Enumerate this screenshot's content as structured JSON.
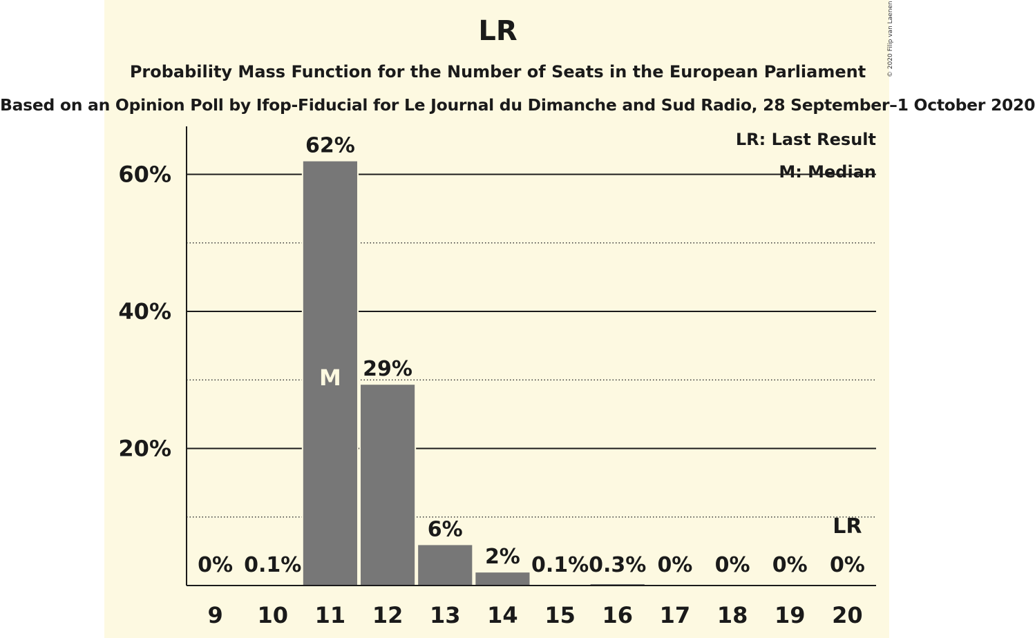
{
  "chart_data": {
    "type": "bar",
    "title": "LR",
    "subtitle": "Probability Mass Function for the Number of Seats in the European Parliament",
    "subtitle2": "Based on an Opinion Poll by Ifop-Fiducial for Le Journal du Dimanche and Sud Radio, 28 September–1 October 2020",
    "copyright": "© 2020 Filip van Laenen",
    "categories": [
      "9",
      "10",
      "11",
      "12",
      "13",
      "14",
      "15",
      "16",
      "17",
      "18",
      "19",
      "20"
    ],
    "values": [
      0,
      0.1,
      62,
      29.4,
      6,
      2,
      0.1,
      0.3,
      0,
      0,
      0,
      0
    ],
    "data_labels": [
      "0%",
      "0.1%",
      "62%",
      "29%",
      "6%",
      "2%",
      "0.1%",
      "0.3%",
      "0%",
      "0%",
      "0%",
      "0%"
    ],
    "ylim": [
      0,
      67
    ],
    "yticks": [
      20,
      40,
      60
    ],
    "ytick_labels": [
      "20%",
      "40%",
      "60%"
    ],
    "minor_gridlines": [
      10,
      30,
      50
    ],
    "median_category": "11",
    "median_marker": "M",
    "last_result_category": "20",
    "last_result_marker": "LR",
    "legend": {
      "placement": "top-right",
      "entries": [
        "LR: Last Result",
        "M: Median"
      ]
    },
    "colors": {
      "bar": "#777777",
      "background": "#fdf9e1"
    }
  }
}
